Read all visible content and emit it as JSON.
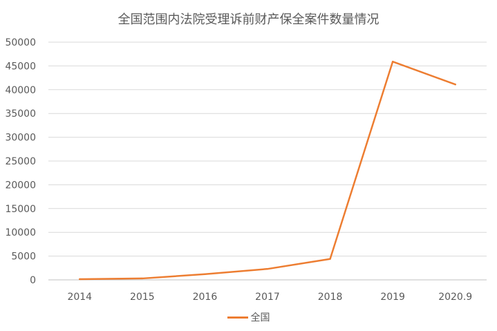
{
  "chart_data": {
    "type": "line",
    "title": "全国范围内法院受理诉前财产保全案件数量情况",
    "xlabel": "",
    "ylabel": "",
    "categories": [
      "2014",
      "2015",
      "2016",
      "2017",
      "2018",
      "2019",
      "2020.9"
    ],
    "series": [
      {
        "name": "全国",
        "color": "#ed7d31",
        "values": [
          150,
          300,
          1200,
          2300,
          4400,
          45900,
          41100
        ]
      }
    ],
    "ylim": [
      0,
      50000
    ],
    "yticks": [
      "0",
      "5000",
      "10000",
      "15000",
      "20000",
      "25000",
      "30000",
      "35000",
      "40000",
      "45000",
      "50000"
    ],
    "grid": true,
    "legend_position": "bottom"
  }
}
